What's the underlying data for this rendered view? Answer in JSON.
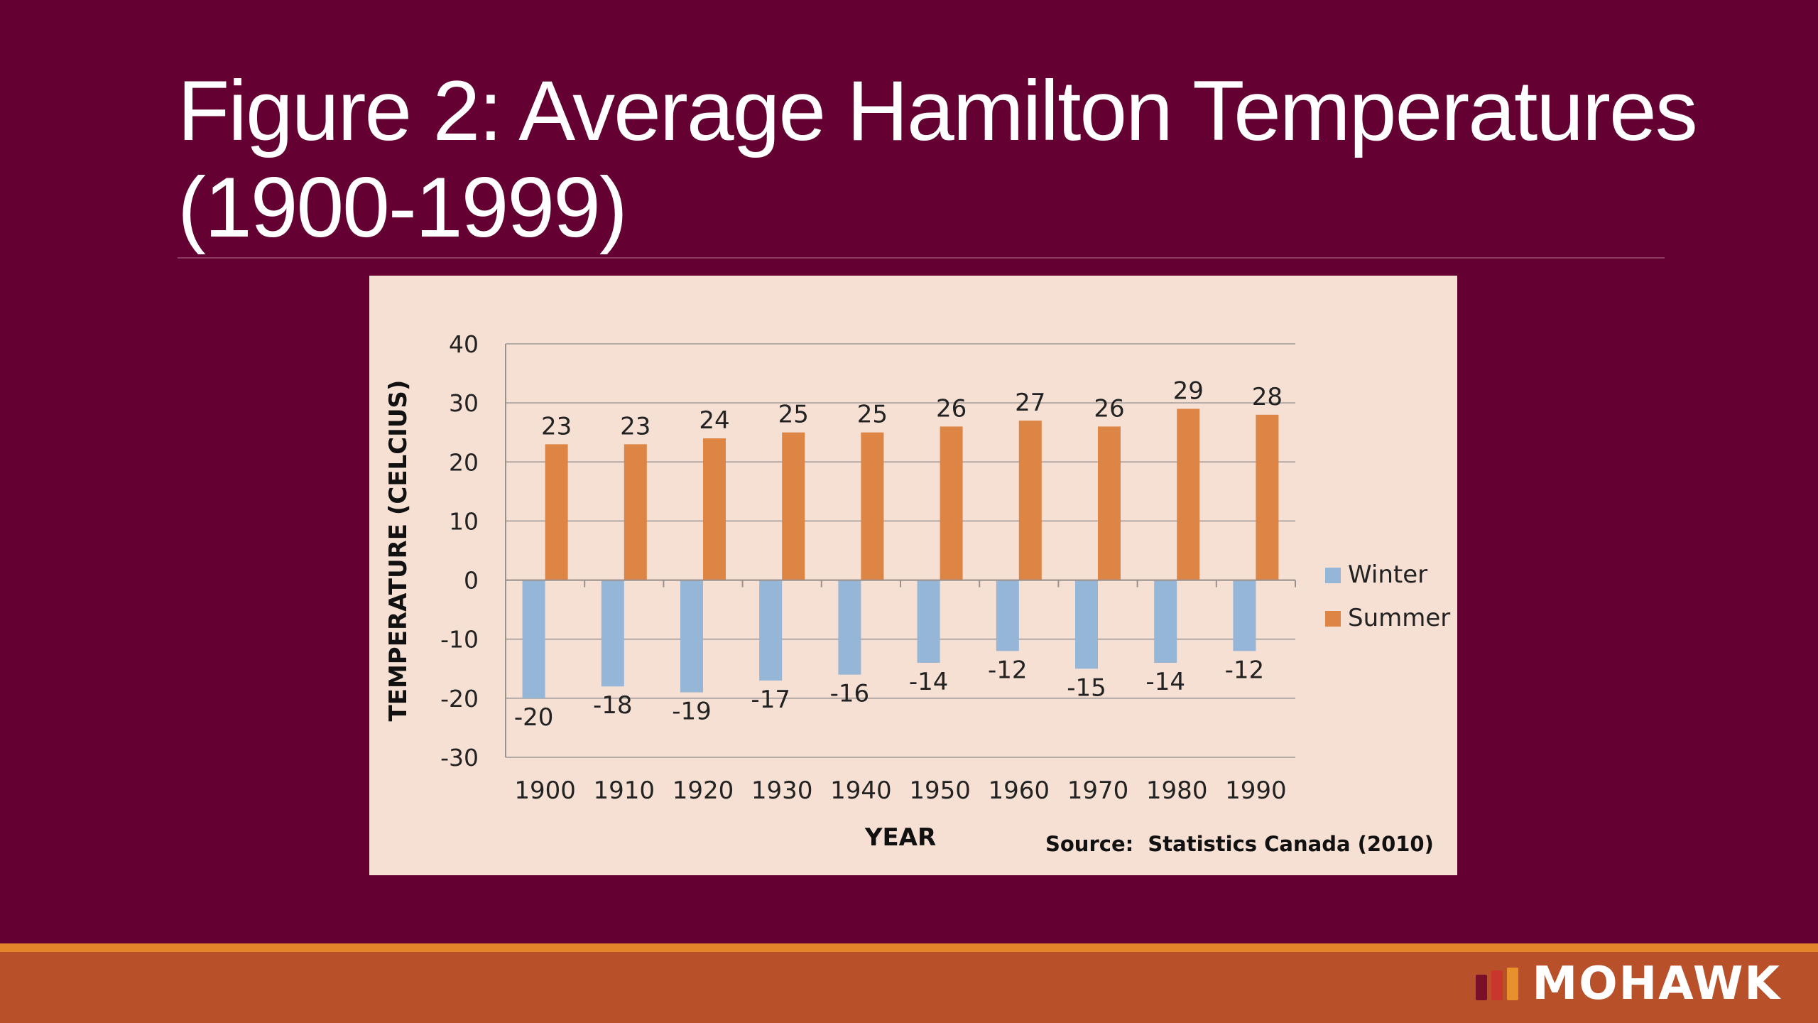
{
  "slide": {
    "title": "Figure 2: Average Hamilton Temperatures (1900-1999)"
  },
  "chart_data": {
    "type": "bar",
    "categories": [
      "1900",
      "1910",
      "1920",
      "1930",
      "1940",
      "1950",
      "1960",
      "1970",
      "1980",
      "1990"
    ],
    "series": [
      {
        "name": "Winter",
        "values": [
          -20,
          -18,
          -19,
          -17,
          -16,
          -14,
          -12,
          -15,
          -14,
          -12
        ],
        "color": "#95b6d6"
      },
      {
        "name": "Summer",
        "values": [
          23,
          23,
          24,
          25,
          25,
          26,
          27,
          26,
          29,
          28
        ],
        "color": "#dd8545"
      }
    ],
    "xlabel": "YEAR",
    "ylabel": "TEMPERATURE (CELCIUS)",
    "ylim": [
      -30,
      40
    ],
    "yticks": [
      40,
      30,
      20,
      10,
      0,
      -10,
      -20,
      -30
    ],
    "gridlines": true,
    "data_labels": true,
    "legend_position": "right",
    "source": "Source:  Statistics Canada (2010)"
  },
  "footer": {
    "brand": "MOHAWK",
    "logo_colors": [
      "#7a0f2a",
      "#c9362b",
      "#e8902c"
    ]
  }
}
